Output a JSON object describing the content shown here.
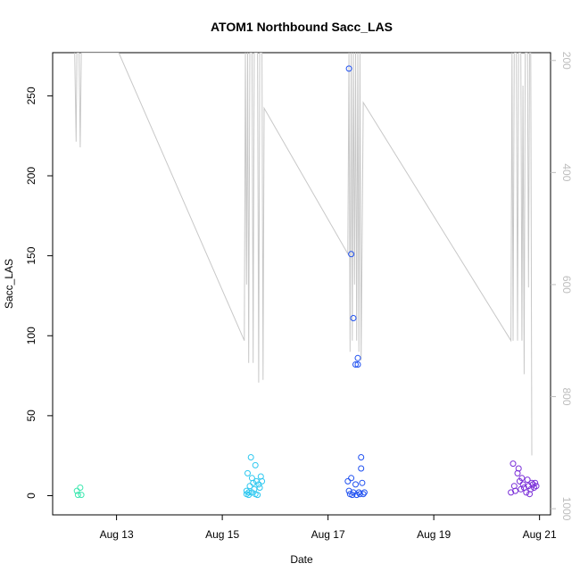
{
  "chart_data": {
    "type": "scatter",
    "title": "ATOM1 Northbound Sacc_LAS",
    "xlabel": "Date",
    "ylabel": "Sacc_LAS",
    "xlim": [
      "2023-08-11T19:00",
      "2023-08-21T05:00"
    ],
    "ylim": [
      -12,
      277
    ],
    "x_ticks": [
      {
        "date": "2023-08-13",
        "label": "Aug 13"
      },
      {
        "date": "2023-08-15",
        "label": "Aug 15"
      },
      {
        "date": "2023-08-17",
        "label": "Aug 17"
      },
      {
        "date": "2023-08-19",
        "label": "Aug 19"
      },
      {
        "date": "2023-08-21",
        "label": "Aug 21"
      }
    ],
    "y_ticks": [
      0,
      50,
      100,
      150,
      200,
      250
    ],
    "secondary_axis": {
      "reversed": true,
      "ylim": [
        1011,
        186
      ],
      "ticks": [
        200,
        400,
        600,
        800,
        1000
      ],
      "line_color": "#c8c8c8",
      "line": [
        [
          "2023-08-12T05:00",
          186
        ],
        [
          "2023-08-12T05:40",
          345
        ],
        [
          "2023-08-12T06:00",
          186
        ],
        [
          "2023-08-12T07:00",
          186
        ],
        [
          "2023-08-12T07:30",
          355
        ],
        [
          "2023-08-12T08:00",
          186
        ],
        [
          "2023-08-13T01:00",
          186
        ],
        [
          "2023-08-15T10:00",
          700
        ],
        [
          "2023-08-15T10:30",
          186
        ],
        [
          "2023-08-15T11:00",
          600
        ],
        [
          "2023-08-15T11:30",
          186
        ],
        [
          "2023-08-15T12:00",
          740
        ],
        [
          "2023-08-15T12:30",
          186
        ],
        [
          "2023-08-15T13:30",
          186
        ],
        [
          "2023-08-15T14:00",
          740
        ],
        [
          "2023-08-15T14:30",
          186
        ],
        [
          "2023-08-15T16:00",
          186
        ],
        [
          "2023-08-15T16:30",
          775
        ],
        [
          "2023-08-15T17:00",
          186
        ],
        [
          "2023-08-15T18:00",
          186
        ],
        [
          "2023-08-15T18:30",
          770
        ],
        [
          "2023-08-15T19:00",
          285
        ],
        [
          "2023-08-17T09:00",
          545
        ],
        [
          "2023-08-17T09:30",
          186
        ],
        [
          "2023-08-17T10:00",
          720
        ],
        [
          "2023-08-17T10:30",
          186
        ],
        [
          "2023-08-17T11:00",
          700
        ],
        [
          "2023-08-17T11:30",
          186
        ],
        [
          "2023-08-17T12:00",
          600
        ],
        [
          "2023-08-17T12:30",
          186
        ],
        [
          "2023-08-17T13:00",
          700
        ],
        [
          "2023-08-17T13:30",
          186
        ],
        [
          "2023-08-17T14:00",
          720
        ],
        [
          "2023-08-17T14:30",
          186
        ],
        [
          "2023-08-17T15:00",
          735
        ],
        [
          "2023-08-17T16:00",
          275
        ],
        [
          "2023-08-20T11:00",
          700
        ],
        [
          "2023-08-20T11:30",
          186
        ],
        [
          "2023-08-20T12:00",
          700
        ],
        [
          "2023-08-20T12:30",
          186
        ],
        [
          "2023-08-20T13:30",
          186
        ],
        [
          "2023-08-20T14:00",
          700
        ],
        [
          "2023-08-20T14:30",
          186
        ],
        [
          "2023-08-20T15:30",
          186
        ],
        [
          "2023-08-20T16:00",
          700
        ],
        [
          "2023-08-20T16:30",
          245
        ],
        [
          "2023-08-20T17:00",
          760
        ],
        [
          "2023-08-20T17:30",
          186
        ],
        [
          "2023-08-20T18:30",
          186
        ],
        [
          "2023-08-20T19:00",
          605
        ],
        [
          "2023-08-20T19:30",
          186
        ],
        [
          "2023-08-20T20:00",
          186
        ],
        [
          "2023-08-20T20:30",
          905
        ]
      ]
    },
    "series": [
      {
        "color": "#3ee8b0",
        "points": [
          [
            "2023-08-12T06:00",
            3
          ],
          [
            "2023-08-12T06:30",
            0.5
          ],
          [
            "2023-08-12T07:30",
            5
          ],
          [
            "2023-08-12T08:00",
            0.5
          ]
        ]
      },
      {
        "color": "#2ec8f0",
        "points": [
          [
            "2023-08-15T11:00",
            3
          ],
          [
            "2023-08-15T11:00",
            1
          ],
          [
            "2023-08-15T11:30",
            14
          ],
          [
            "2023-08-15T12:00",
            0.5
          ],
          [
            "2023-08-15T12:00",
            2
          ],
          [
            "2023-08-15T12:30",
            6
          ],
          [
            "2023-08-15T13:00",
            24
          ],
          [
            "2023-08-15T13:30",
            11
          ],
          [
            "2023-08-15T13:30",
            2
          ],
          [
            "2023-08-15T14:00",
            8
          ],
          [
            "2023-08-15T14:30",
            4
          ],
          [
            "2023-08-15T15:00",
            1
          ],
          [
            "2023-08-15T15:00",
            19
          ],
          [
            "2023-08-15T15:30",
            9
          ],
          [
            "2023-08-15T16:00",
            0.5
          ],
          [
            "2023-08-15T16:30",
            7
          ],
          [
            "2023-08-15T17:00",
            5
          ],
          [
            "2023-08-15T17:30",
            12
          ],
          [
            "2023-08-15T18:00",
            9
          ]
        ]
      },
      {
        "color": "#1f50f0",
        "points": [
          [
            "2023-08-17T09:00",
            9
          ],
          [
            "2023-08-17T09:30",
            3
          ],
          [
            "2023-08-17T09:30",
            267
          ],
          [
            "2023-08-17T10:00",
            1
          ],
          [
            "2023-08-17T10:30",
            11
          ],
          [
            "2023-08-17T10:30",
            151
          ],
          [
            "2023-08-17T11:00",
            0.5
          ],
          [
            "2023-08-17T11:30",
            111
          ],
          [
            "2023-08-17T11:30",
            2
          ],
          [
            "2023-08-17T12:30",
            82
          ],
          [
            "2023-08-17T12:30",
            7
          ],
          [
            "2023-08-17T13:00",
            0.5
          ],
          [
            "2023-08-17T13:30",
            82
          ],
          [
            "2023-08-17T13:30",
            86
          ],
          [
            "2023-08-17T14:00",
            2
          ],
          [
            "2023-08-17T14:30",
            1
          ],
          [
            "2023-08-17T15:00",
            24
          ],
          [
            "2023-08-17T15:00",
            17
          ],
          [
            "2023-08-17T15:30",
            8
          ],
          [
            "2023-08-17T16:00",
            1
          ],
          [
            "2023-08-17T16:30",
            2
          ]
        ]
      },
      {
        "color": "#7a2ed8",
        "points": [
          [
            "2023-08-20T11:00",
            2
          ],
          [
            "2023-08-20T12:00",
            20
          ],
          [
            "2023-08-20T12:30",
            6
          ],
          [
            "2023-08-20T13:00",
            3
          ],
          [
            "2023-08-20T14:00",
            14
          ],
          [
            "2023-08-20T14:30",
            17
          ],
          [
            "2023-08-20T15:00",
            9
          ],
          [
            "2023-08-20T15:30",
            4
          ],
          [
            "2023-08-20T16:00",
            11
          ],
          [
            "2023-08-20T16:30",
            7
          ],
          [
            "2023-08-20T17:00",
            5
          ],
          [
            "2023-08-20T18:00",
            2
          ],
          [
            "2023-08-20T18:30",
            10
          ],
          [
            "2023-08-20T19:00",
            6
          ],
          [
            "2023-08-20T19:30",
            1
          ],
          [
            "2023-08-20T20:00",
            4
          ],
          [
            "2023-08-20T20:30",
            8
          ],
          [
            "2023-08-20T21:00",
            7
          ],
          [
            "2023-08-20T21:30",
            5
          ],
          [
            "2023-08-20T22:00",
            8
          ],
          [
            "2023-08-20T22:30",
            6
          ]
        ]
      }
    ],
    "grid": false
  }
}
